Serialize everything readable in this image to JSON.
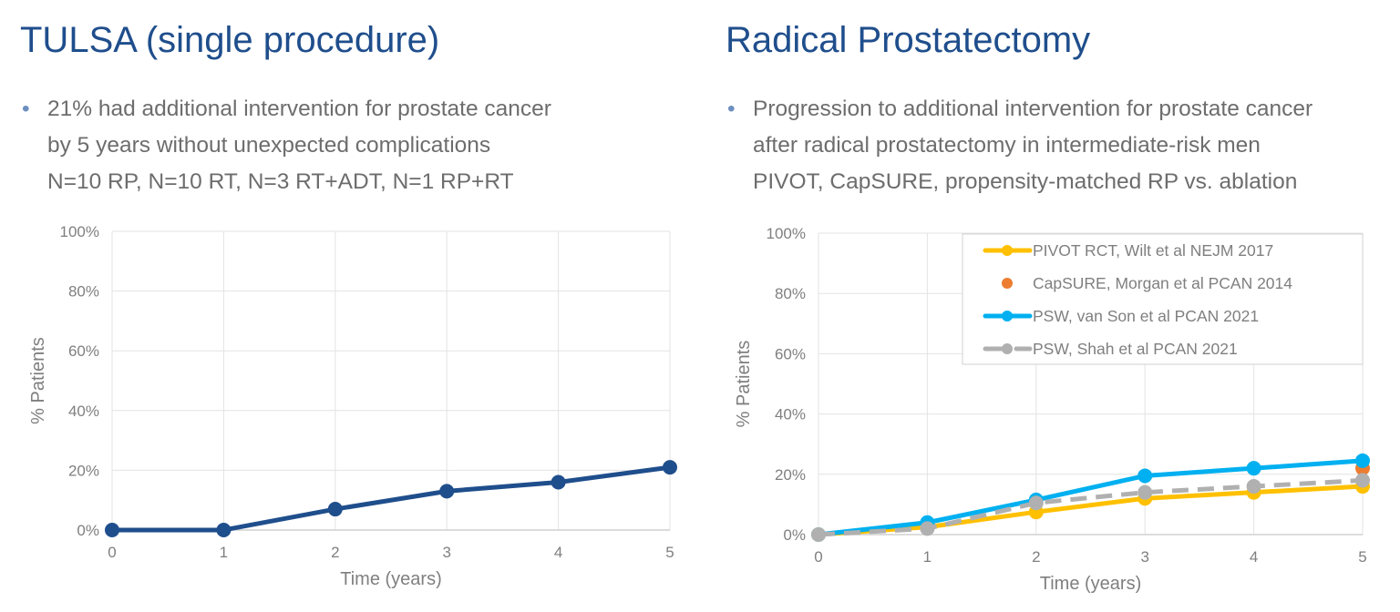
{
  "left": {
    "title": "TULSA (single procedure)",
    "bullet": [
      "21% had additional intervention for prostate cancer",
      "by 5 years without unexpected complications",
      "N=10 RP, N=10 RT, N=3 RT+ADT, N=1 RP+RT"
    ]
  },
  "right": {
    "title": "Radical Prostatectomy",
    "bullet": [
      "Progression to additional intervention for prostate cancer",
      "after radical prostatectomy in intermediate-risk men",
      "PIVOT, CapSURE, propensity-matched RP vs. ablation"
    ]
  },
  "chart_data": [
    {
      "type": "line",
      "xlabel": "Time (years)",
      "ylabel": "% Patients",
      "xlim": [
        0,
        5
      ],
      "ylim": [
        0,
        100
      ],
      "grid": true,
      "x_ticks": [
        "0",
        "1",
        "2",
        "3",
        "4",
        "5"
      ],
      "y_ticks": [
        "0%",
        "20%",
        "40%",
        "60%",
        "80%",
        "100%"
      ],
      "series": [
        {
          "color": "#1f4e8c",
          "x": [
            0,
            1,
            2,
            3,
            4,
            5
          ],
          "values": [
            0,
            0,
            7,
            13,
            16,
            21
          ]
        }
      ]
    },
    {
      "type": "line",
      "xlabel": "Time (years)",
      "ylabel": "% Patients",
      "xlim": [
        0,
        5
      ],
      "ylim": [
        0,
        100
      ],
      "grid": true,
      "legend": "top-right",
      "x_ticks": [
        "0",
        "1",
        "2",
        "3",
        "4",
        "5"
      ],
      "y_ticks": [
        "0%",
        "20%",
        "40%",
        "60%",
        "80%",
        "100%"
      ],
      "series": [
        {
          "name": "PIVOT RCT, Wilt et al NEJM 2017",
          "color": "#ffc000",
          "style": "solid",
          "x": [
            0,
            1,
            2,
            3,
            4,
            5
          ],
          "values": [
            0,
            2.5,
            7.5,
            12,
            14,
            16
          ]
        },
        {
          "name": "CapSURE, Morgan et al PCAN 2014",
          "color": "#ed7d31",
          "style": "marker",
          "x": [
            5
          ],
          "values": [
            22
          ]
        },
        {
          "name": "PSW, van Son et al PCAN 2021",
          "color": "#00b0f0",
          "style": "solid",
          "x": [
            0,
            1,
            2,
            3,
            4,
            5
          ],
          "values": [
            0,
            4,
            11.5,
            19.5,
            22,
            24.5
          ]
        },
        {
          "name": "PSW, Shah et al PCAN 2021",
          "color": "#b0b0b0",
          "style": "dashed",
          "x": [
            0,
            1,
            2,
            3,
            4,
            5
          ],
          "values": [
            0,
            2,
            10.5,
            14,
            16,
            18
          ]
        }
      ]
    }
  ]
}
